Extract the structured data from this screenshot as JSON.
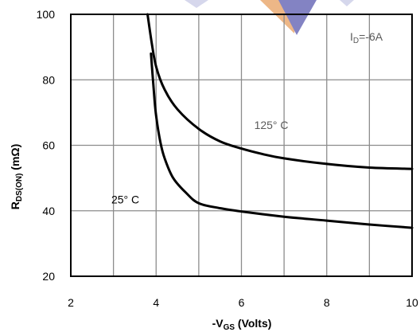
{
  "chart_data": {
    "type": "line",
    "xlabel": "-V_GS (Volts)",
    "xlabel_main": "-V",
    "xlabel_sub": "GS",
    "xlabel_rest": " (Volts)",
    "ylabel_main": "R",
    "ylabel_sub": "DS(ON)",
    "ylabel_rest": " (mΩ)",
    "xlim": [
      2,
      10
    ],
    "ylim": [
      20,
      100
    ],
    "xticks": [
      "2",
      "4",
      "6",
      "8",
      "10"
    ],
    "yticks": [
      "20",
      "40",
      "60",
      "80",
      "100"
    ],
    "xtick_values": [
      2,
      4,
      6,
      8,
      10
    ],
    "ytick_values": [
      20,
      40,
      60,
      80,
      100
    ],
    "grid": true,
    "condition_main": "I",
    "condition_sub": "D",
    "condition_rest": "=-6A",
    "series": [
      {
        "name": "125° C",
        "x": [
          3.8,
          3.9,
          4.0,
          4.2,
          4.5,
          5.0,
          5.5,
          6.0,
          6.5,
          7.0,
          8.0,
          9.0,
          10.0
        ],
        "y": [
          100,
          91,
          84,
          77,
          71,
          65,
          61.2,
          59,
          57.3,
          56,
          54.3,
          53.2,
          52.8
        ]
      },
      {
        "name": "25° C",
        "x": [
          3.88,
          3.95,
          4.0,
          4.1,
          4.2,
          4.4,
          4.7,
          5.0,
          5.5,
          6.0,
          7.0,
          8.0,
          9.0,
          10.0
        ],
        "y": [
          88,
          76,
          69,
          61,
          56,
          50,
          45.5,
          42.3,
          40.8,
          39.8,
          38.2,
          37,
          35.8,
          34.8
        ]
      }
    ],
    "annotations": [
      {
        "text": "125° C",
        "x": 6.3,
        "y": 65
      },
      {
        "text": "25° C",
        "x": 2.95,
        "y": 42.3
      }
    ]
  }
}
